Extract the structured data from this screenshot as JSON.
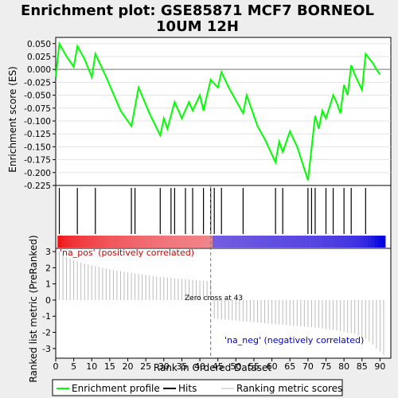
{
  "title_line1": "Enrichment plot: GSE85871 MCF7 BORNEOL",
  "title_line2": "10UM 12H",
  "chart_data": [
    {
      "type": "line",
      "panel": "enrichment",
      "ylabel": "Enrichment score (ES)",
      "ylim": [
        -0.225,
        0.062
      ],
      "yticks": [
        0.05,
        0.025,
        0.0,
        -0.025,
        -0.05,
        -0.075,
        -0.1,
        -0.125,
        -0.15,
        -0.175,
        -0.2,
        -0.225
      ],
      "ytick_labels": [
        "0.050",
        "0.025",
        "0.000",
        "-0.025",
        "-0.050",
        "-0.075",
        "-0.100",
        "-0.125",
        "-0.150",
        "-0.175",
        "-0.200",
        "-0.225"
      ],
      "series": [
        {
          "color": "#00ff00",
          "x": [
            0,
            1,
            3,
            5,
            6,
            8,
            10,
            11,
            14,
            18,
            21,
            23,
            26,
            29,
            30,
            31,
            33,
            35,
            37,
            38,
            40,
            41,
            43,
            45,
            46,
            48,
            52,
            53,
            56,
            58,
            61,
            62,
            63,
            65,
            67,
            70,
            72,
            73,
            74,
            75,
            77,
            78,
            79,
            80,
            81,
            82,
            83,
            85,
            86,
            88,
            89,
            90
          ],
          "y": [
            -0.015,
            0.05,
            0.025,
            0.005,
            0.045,
            0.02,
            -0.015,
            0.03,
            -0.015,
            -0.08,
            -0.11,
            -0.035,
            -0.085,
            -0.128,
            -0.095,
            -0.115,
            -0.063,
            -0.095,
            -0.063,
            -0.08,
            -0.05,
            -0.08,
            -0.02,
            -0.035,
            -0.005,
            -0.035,
            -0.085,
            -0.05,
            -0.11,
            -0.135,
            -0.18,
            -0.14,
            -0.16,
            -0.12,
            -0.15,
            -0.215,
            -0.09,
            -0.115,
            -0.08,
            -0.095,
            -0.05,
            -0.065,
            -0.085,
            -0.03,
            -0.05,
            0.008,
            -0.01,
            -0.04,
            0.03,
            0.012,
            0.0,
            -0.01
          ]
        }
      ]
    },
    {
      "type": "scatter",
      "panel": "hits",
      "hit_ranks": [
        1,
        6,
        11,
        21,
        22,
        29,
        32,
        33,
        36,
        38,
        41,
        43,
        44,
        46,
        52,
        61,
        63,
        70,
        71,
        72,
        75,
        77,
        80,
        82,
        86
      ]
    },
    {
      "type": "bar",
      "panel": "ranked-metric",
      "xlabel": "Rank in Ordered Dataset",
      "ylabel": "Ranked list metric (PreRanked)",
      "xlim": [
        0,
        93
      ],
      "xticks": [
        0,
        5,
        10,
        15,
        20,
        25,
        30,
        35,
        40,
        45,
        50,
        55,
        60,
        65,
        70,
        75,
        80,
        85,
        90
      ],
      "ylim": [
        -3.6,
        3.2
      ],
      "yticks": [
        3,
        2,
        1,
        0,
        -1,
        -2,
        -3
      ],
      "values": [
        3.05,
        2.8,
        2.65,
        2.55,
        2.45,
        2.38,
        2.32,
        2.26,
        2.2,
        2.15,
        2.1,
        2.05,
        2.0,
        1.95,
        1.9,
        1.86,
        1.82,
        1.78,
        1.74,
        1.7,
        1.67,
        1.64,
        1.61,
        1.58,
        1.55,
        1.52,
        1.49,
        1.46,
        1.43,
        1.41,
        1.39,
        1.37,
        1.35,
        1.33,
        1.31,
        1.29,
        1.27,
        1.25,
        1.23,
        1.21,
        1.19,
        1.17,
        1.15,
        -1.15,
        -1.17,
        -1.19,
        -1.21,
        -1.23,
        -1.25,
        -1.27,
        -1.29,
        -1.31,
        -1.33,
        -1.35,
        -1.37,
        -1.39,
        -1.41,
        -1.43,
        -1.45,
        -1.47,
        -1.49,
        -1.51,
        -1.53,
        -1.55,
        -1.57,
        -1.59,
        -1.61,
        -1.63,
        -1.65,
        -1.67,
        -1.69,
        -1.71,
        -1.73,
        -1.76,
        -1.79,
        -1.82,
        -1.85,
        -1.88,
        -1.92,
        -1.96,
        -2.0,
        -2.05,
        -2.1,
        -2.18,
        -2.28,
        -2.4,
        -2.55,
        -2.75,
        -3.0,
        -3.2,
        -3.4
      ],
      "annotations": {
        "pos_label": "'na_pos' (positively correlated)",
        "neg_label": "'na_neg' (negatively correlated)",
        "zero_cross": "Zero cross at 43",
        "zero_cross_rank": 43
      }
    }
  ],
  "legend": {
    "placement": "bottom",
    "items": [
      {
        "label": "Enrichment profile",
        "color": "#00ff00"
      },
      {
        "label": "Hits",
        "color": "#000000"
      },
      {
        "label": "Ranking metric scores",
        "color": "#bbbbbb"
      }
    ]
  },
  "colors": {
    "profile": "#00ff00",
    "pos_label": "#cc0000",
    "neg_label": "#0000cc",
    "zero_line": "#777777"
  }
}
